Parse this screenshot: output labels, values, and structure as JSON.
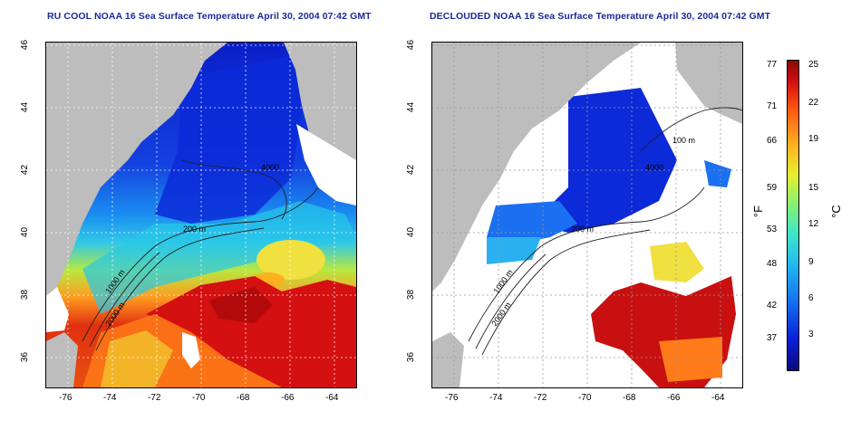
{
  "left_panel": {
    "title": "RU COOL NOAA 16 Sea Surface Temperature April 30, 2004 07:42 GMT",
    "contour_labels": [
      "4000",
      "200 m",
      "2000 m",
      "1000 m"
    ]
  },
  "right_panel": {
    "title": "DECLOUDED NOAA 16 Sea Surface Temperature April 30, 2004 07:42 GMT",
    "contour_labels": [
      "100 m",
      "4000",
      "200 m",
      "2000 m",
      "1000 m"
    ]
  },
  "axes": {
    "lat_ticks": [
      "46",
      "44",
      "42",
      "40",
      "38",
      "36"
    ],
    "lon_ticks": [
      "-76",
      "-74",
      "-72",
      "-70",
      "-68",
      "-66",
      "-64"
    ]
  },
  "colorbar": {
    "fahrenheit_label": "°F",
    "celsius_label": "°C",
    "fahrenheit_ticks": [
      "77",
      "71",
      "66",
      "59",
      "53",
      "48",
      "42",
      "37"
    ],
    "celsius_ticks": [
      "25",
      "22",
      "19",
      "15",
      "12",
      "9",
      "6",
      "3"
    ]
  },
  "colors": {
    "land": "#bdbdbd",
    "title": "#1a2a9a",
    "cold": "#0a1fc8",
    "warm": "#d41010"
  }
}
